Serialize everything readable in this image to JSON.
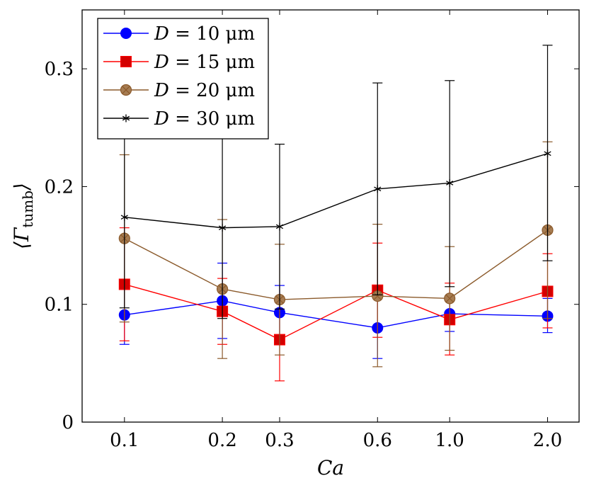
{
  "chart_data": {
    "type": "line",
    "title": "",
    "xlabel": "Ca",
    "ylabel_main": "⟨Γ",
    "ylabel_sub": "tumb",
    "ylabel_close": "⟩",
    "categories": [
      "0.1",
      "0.2",
      "0.3",
      "0.6",
      "1.0",
      "2.0"
    ],
    "x": [
      0.1,
      0.2,
      0.3,
      0.6,
      1.0,
      2.0
    ],
    "x_scale": "log",
    "xlim": [
      0.0741,
      2.5
    ],
    "ylim": [
      0,
      0.35
    ],
    "y_ticks": [
      0,
      0.1,
      0.2,
      0.3
    ],
    "y_tick_labels": [
      "0",
      "0.1",
      "0.2",
      "0.3"
    ],
    "grid": false,
    "legend_position": "top-left",
    "series": [
      {
        "name_prefix": "D = ",
        "name_value": "10 μm",
        "name": "D = 10 μm",
        "color": "#0000ff",
        "marker": "circle",
        "values": [
          0.091,
          0.103,
          0.093,
          0.08,
          0.092,
          0.09
        ],
        "err_low": [
          0.066,
          0.071,
          0.071,
          0.054,
          0.077,
          0.076
        ],
        "err_high": [
          0.117,
          0.135,
          0.116,
          0.106,
          0.107,
          0.105
        ]
      },
      {
        "name_prefix": "D = ",
        "name_value": "15 μm",
        "name": "D = 15 μm",
        "color": "#ff0000",
        "marker_fill": "#d40000",
        "marker": "square",
        "values": [
          0.117,
          0.094,
          0.07,
          0.112,
          0.087,
          0.111
        ],
        "err_low": [
          0.069,
          0.066,
          0.035,
          0.072,
          0.057,
          0.08
        ],
        "err_high": [
          0.165,
          0.122,
          0.105,
          0.152,
          0.118,
          0.143
        ]
      },
      {
        "name_prefix": "D = ",
        "name_value": "20 μm",
        "name": "D = 20 μm",
        "color": "#8b5a2b",
        "marker_fill": "#a67c52",
        "marker": "circle-x",
        "values": [
          0.156,
          0.113,
          0.104,
          0.107,
          0.105,
          0.163
        ],
        "err_low": [
          0.085,
          0.054,
          0.057,
          0.047,
          0.061,
          0.088
        ],
        "err_high": [
          0.227,
          0.172,
          0.151,
          0.168,
          0.149,
          0.238
        ]
      },
      {
        "name_prefix": "D = ",
        "name_value": "30 μm",
        "name": "D = 30 μm",
        "color": "#000000",
        "marker": "star",
        "values": [
          0.174,
          0.165,
          0.166,
          0.198,
          0.203,
          0.228
        ],
        "err_low": [
          0.097,
          0.088,
          0.096,
          0.108,
          0.115,
          0.137
        ],
        "err_high": [
          0.251,
          0.242,
          0.236,
          0.288,
          0.29,
          0.32
        ]
      }
    ]
  }
}
